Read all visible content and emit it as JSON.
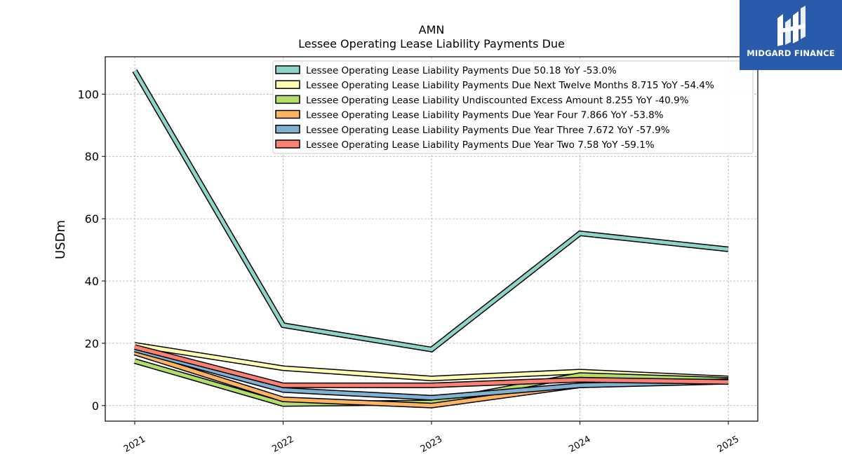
{
  "chart_data": {
    "type": "line",
    "title": "AMN",
    "subtitle": "Lessee Operating Lease Liability Payments Due",
    "ylabel": "USDm",
    "xlabel": "",
    "x": [
      "2021",
      "2022",
      "2023",
      "2024",
      "2025"
    ],
    "ylim": [
      -5,
      112
    ],
    "yticks": [
      0,
      20,
      40,
      60,
      80,
      100
    ],
    "grid": true,
    "legend_position": "top-right",
    "series": [
      {
        "name": "Lessee Operating Lease Liability Payments Due",
        "legend": "Lessee Operating Lease Liability Payments Due  50.18 YoY -53.0%",
        "color": "#8dd3c7",
        "values": [
          107.5,
          25.8,
          18.0,
          55.3,
          50.18
        ]
      },
      {
        "name": "Lessee Operating Lease Liability Payments Due Next Twelve Months",
        "legend": "Lessee Operating Lease Liability Payments Due Next Twelve Months  8.715 YoY -54.4%",
        "color": "#ffffb3",
        "values": [
          19.5,
          12.0,
          8.7,
          10.9,
          8.715
        ]
      },
      {
        "name": "Lessee Operating Lease Liability Undiscounted Excess Amount",
        "legend": "Lessee Operating Lease Liability Undiscounted Excess Amount  8.255 YoY -40.9%",
        "color": "#b3de69",
        "values": [
          14.3,
          0.5,
          1.0,
          9.8,
          8.255
        ]
      },
      {
        "name": "Lessee Operating Lease Liability Payments Due Year Four",
        "legend": "Lessee Operating Lease Liability Payments Due Year Four  7.866 YoY -53.8%",
        "color": "#fdb462",
        "values": [
          17.0,
          2.0,
          0.0,
          6.5,
          7.866
        ]
      },
      {
        "name": "Lessee Operating Lease Liability Payments Due Year Three",
        "legend": "Lessee Operating Lease Liability Payments Due Year Three  7.672 YoY -57.9%",
        "color": "#80b1d3",
        "values": [
          18.0,
          5.0,
          2.5,
          6.5,
          7.672
        ]
      },
      {
        "name": "Lessee Operating Lease Liability Payments Due Year Two",
        "legend": "Lessee Operating Lease Liability Payments Due Year Two  7.58 YoY -59.1%",
        "color": "#fb8072",
        "values": [
          18.8,
          6.5,
          6.5,
          8.3,
          7.58
        ]
      }
    ]
  },
  "logo": {
    "text": "MIDGARD FINANCE",
    "bg": "#2a5bab",
    "color": "#ffffff"
  }
}
